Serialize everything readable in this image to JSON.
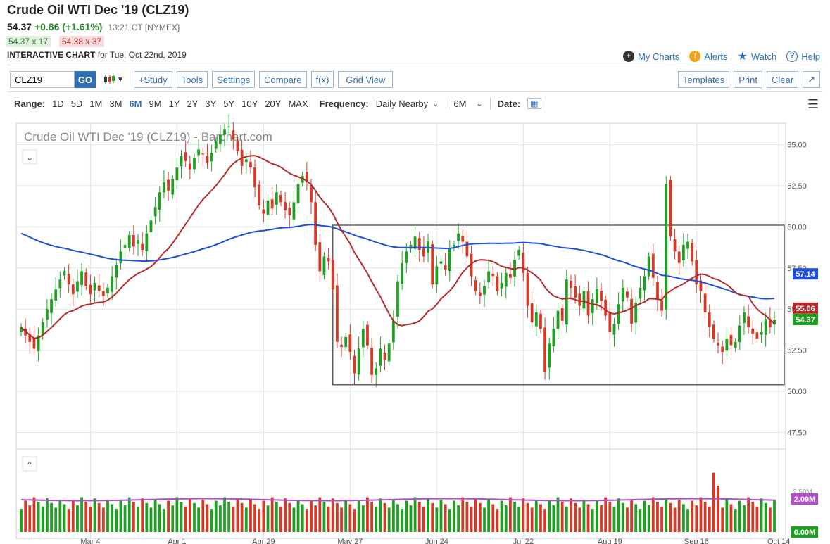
{
  "header": {
    "title": "Crude Oil WTI Dec '19 (CLZ19)",
    "last": "54.37",
    "change": "+0.86 (+1.61%)",
    "time": "13:21 CT [NYMEX]",
    "bid": "54.37 x 17",
    "ask": "54.38 x 37",
    "chart_label": "INTERACTIVE CHART",
    "chart_date": "for Tue, Oct 22nd, 2019"
  },
  "links": {
    "my_charts": "My Charts",
    "alerts": "Alerts",
    "watch": "Watch",
    "help": "Help"
  },
  "toolbar": {
    "symbol": "CLZ19",
    "go": "GO",
    "study": "+Study",
    "tools": "Tools",
    "settings": "Settings",
    "compare": "Compare",
    "fx": "f(x)",
    "grid_view": "Grid View",
    "templates": "Templates",
    "print": "Print",
    "clear": "Clear"
  },
  "range": {
    "label": "Range:",
    "options": [
      "1D",
      "5D",
      "1M",
      "3M",
      "6M",
      "9M",
      "1Y",
      "2Y",
      "3Y",
      "5Y",
      "10Y",
      "20Y",
      "MAX"
    ],
    "active": "6M",
    "frequency_label": "Frequency:",
    "frequency": "Daily Nearby",
    "period": "6M",
    "date_label": "Date:"
  },
  "chart_data": {
    "type": "candlestick",
    "title": "Crude Oil WTI Dec '19 (CLZ19) - Barchart.com",
    "ylim": [
      46.5,
      66.3
    ],
    "y_ticks": [
      "65.00",
      "62.50",
      "60.00",
      "57.50",
      "55.00",
      "52.50",
      "50.00",
      "47.50"
    ],
    "x_ticks": [
      "Mar 4",
      "Apr 1",
      "Apr 29",
      "May 27",
      "Jun 24",
      "Jul 22",
      "Aug 19",
      "Sep 16",
      "Oct 14"
    ],
    "x_tick_index": [
      16,
      36,
      56,
      76,
      96,
      116,
      136,
      156,
      175
    ],
    "price_labels": {
      "ma_slow": "57.14",
      "ma_fast": "55.06",
      "last": "54.37"
    },
    "colors": {
      "up": "#1fa023",
      "down": "#d63a27",
      "ma_slow": "#1f4fd8",
      "ma_fast": "#b52a2a",
      "volume_avg": "#b04ec8"
    },
    "closes": [
      53.9,
      53.4,
      53.0,
      52.6,
      53.4,
      54.2,
      55.0,
      55.6,
      56.2,
      56.8,
      57.3,
      56.5,
      55.9,
      56.7,
      57.3,
      56.4,
      55.9,
      56.6,
      56.1,
      55.8,
      56.3,
      57.0,
      57.7,
      58.5,
      58.9,
      59.5,
      58.8,
      59.2,
      58.6,
      59.6,
      60.4,
      61.2,
      62.1,
      62.7,
      62.2,
      62.9,
      63.6,
      64.3,
      64.0,
      63.5,
      64.2,
      64.7,
      64.4,
      63.9,
      64.5,
      65.2,
      65.6,
      65.9,
      66.1,
      65.3,
      64.6,
      63.7,
      64.1,
      63.6,
      62.4,
      61.3,
      60.8,
      61.6,
      61.1,
      62.1,
      61.5,
      61.0,
      60.7,
      61.5,
      62.6,
      63.1,
      62.7,
      61.5,
      58.9,
      57.3,
      58.2,
      57.9,
      56.2,
      53.0,
      52.7,
      53.3,
      52.4,
      51.1,
      52.6,
      53.8,
      52.8,
      51.0,
      51.4,
      52.6,
      51.9,
      52.9,
      54.3,
      56.7,
      57.8,
      58.5,
      58.9,
      59.4,
      58.6,
      58.2,
      59.1,
      56.5,
      57.6,
      57.9,
      57.4,
      58.7,
      58.9,
      59.6,
      59.1,
      58.2,
      57.0,
      56.1,
      55.8,
      56.4,
      57.3,
      57.0,
      56.1,
      56.6,
      57.2,
      56.9,
      58.0,
      58.6,
      57.2,
      55.2,
      54.2,
      54.8,
      53.8,
      51.2,
      52.9,
      53.8,
      54.9,
      54.3,
      56.8,
      56.3,
      55.7,
      55.2,
      56.1,
      54.6,
      55.6,
      56.2,
      55.5,
      54.6,
      53.6,
      54.1,
      55.3,
      56.3,
      55.7,
      54.1,
      55.4,
      56.3,
      57.0,
      58.2,
      56.9,
      55.6,
      54.9,
      62.6,
      59.4,
      58.5,
      57.8,
      58.9,
      59.1,
      57.9,
      56.5,
      56.1,
      54.8,
      53.9,
      53.2,
      52.8,
      52.4,
      53.2,
      52.8,
      53.0,
      54.0,
      54.8,
      53.9,
      53.5,
      53.2,
      53.6,
      54.4,
      53.9,
      54.37
    ],
    "volume_labels": {
      "avg": "2.09M",
      "zero": "0.00M",
      "axis": "2.50M"
    }
  }
}
